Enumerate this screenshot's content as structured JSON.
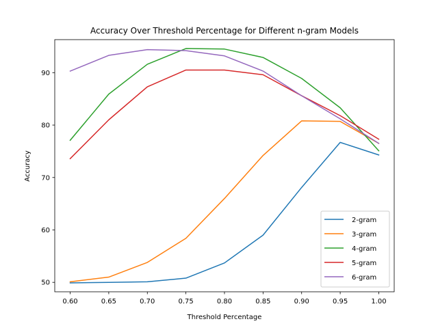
{
  "chart_data": {
    "type": "line",
    "title": "Accuracy Over Threshold Percentage for Different n-gram Models",
    "xlabel": "Threshold Percentage",
    "ylabel": "Accuracy",
    "xlim": [
      0.58,
      1.02
    ],
    "ylim": [
      48.2,
      96.3
    ],
    "xticks": [
      "0.60",
      "0.65",
      "0.70",
      "0.75",
      "0.80",
      "0.85",
      "0.90",
      "0.95",
      "1.00"
    ],
    "yticks": [
      "50",
      "60",
      "70",
      "80",
      "90"
    ],
    "x": [
      0.6,
      0.65,
      0.7,
      0.75,
      0.8,
      0.85,
      0.9,
      0.95,
      1.0
    ],
    "legend_position": "lower-right",
    "grid": false,
    "series": [
      {
        "name": "2-gram",
        "color": "#1f77b4",
        "values": [
          49.9,
          50.0,
          50.1,
          50.8,
          53.7,
          59.0,
          68.1,
          76.7,
          74.3
        ]
      },
      {
        "name": "3-gram",
        "color": "#ff7f0e",
        "values": [
          50.1,
          51.0,
          53.8,
          58.4,
          66.0,
          74.2,
          80.8,
          80.7,
          76.5
        ]
      },
      {
        "name": "4-gram",
        "color": "#2ca02c",
        "values": [
          77.1,
          85.9,
          91.6,
          94.6,
          94.5,
          92.9,
          88.9,
          83.3,
          75.1
        ]
      },
      {
        "name": "5-gram",
        "color": "#d62728",
        "values": [
          73.6,
          81.0,
          87.3,
          90.5,
          90.5,
          89.6,
          85.6,
          81.8,
          77.3
        ]
      },
      {
        "name": "6-gram",
        "color": "#9467bd",
        "values": [
          90.3,
          93.3,
          94.4,
          94.2,
          93.2,
          90.3,
          85.6,
          81.2,
          76.5
        ]
      }
    ]
  }
}
